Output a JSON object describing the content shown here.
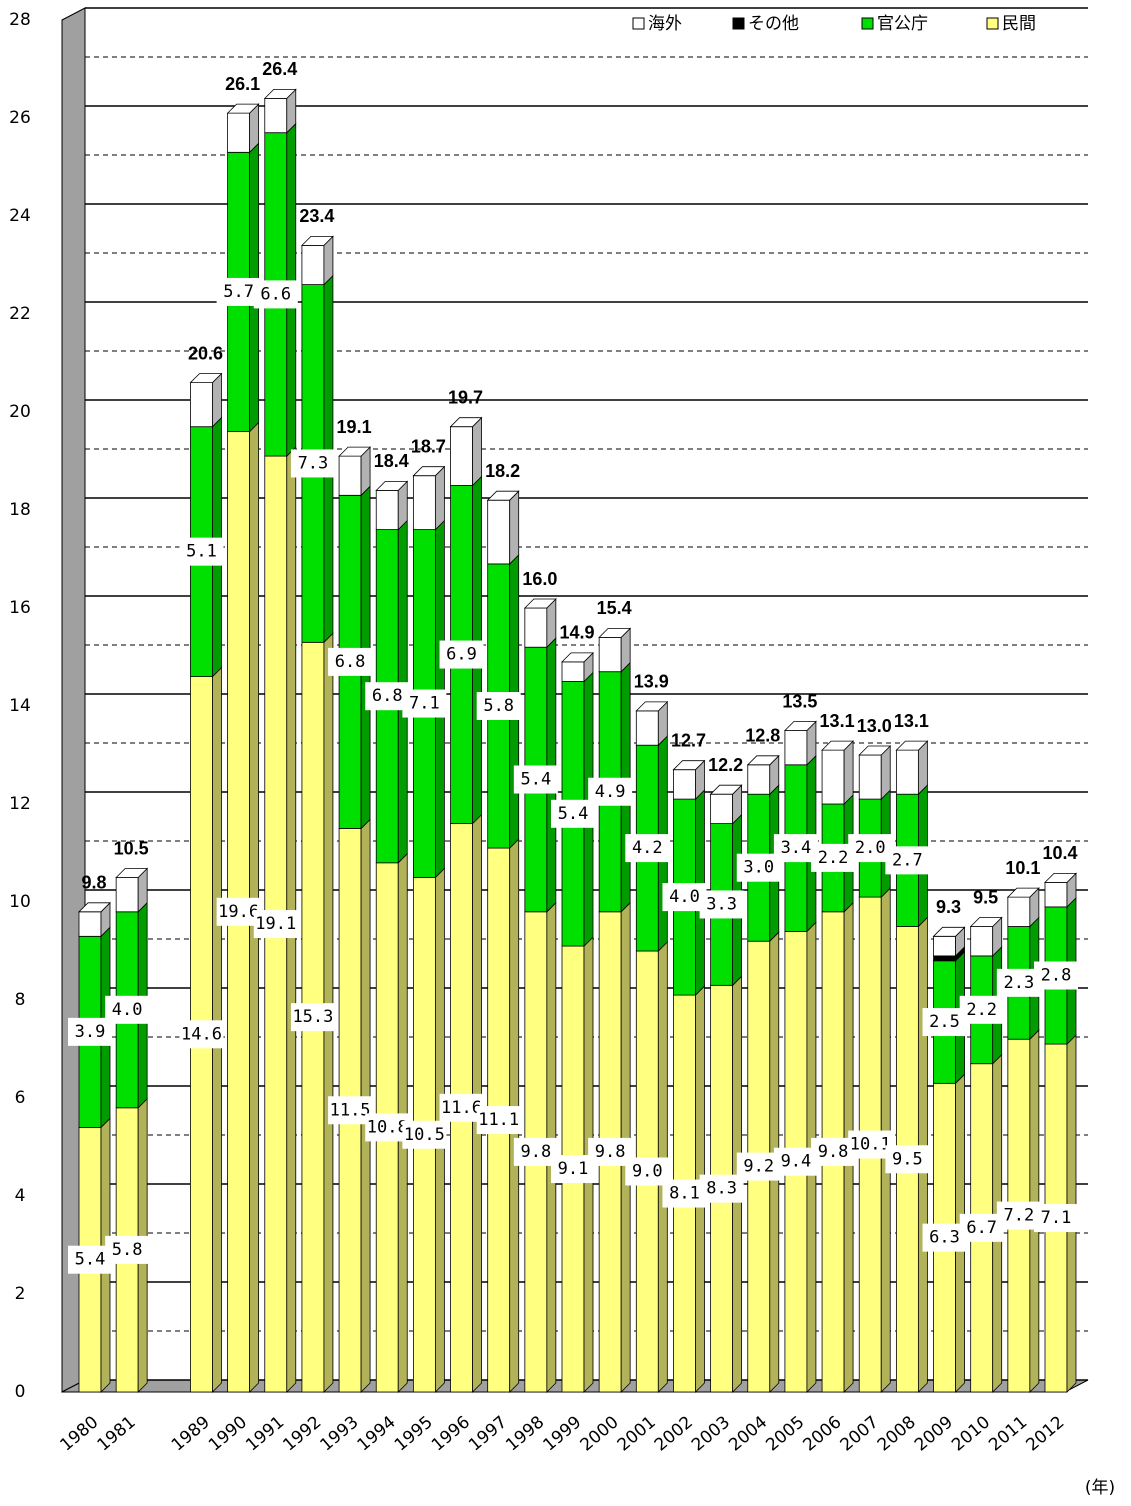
{
  "chart_data": {
    "type": "stacked_bar_3d",
    "x_label": "(年)",
    "categories": [
      "1980",
      "1981",
      null,
      "1989",
      "1990",
      "1991",
      "1992",
      "1993",
      "1994",
      "1995",
      "1996",
      "1997",
      "1998",
      "1999",
      "2000",
      "2001",
      "2002",
      "2003",
      "2004",
      "2005",
      "2006",
      "2007",
      "2008",
      "2009",
      "2010",
      "2011",
      "2012"
    ],
    "series": [
      {
        "name": "民間",
        "color": "#ffff80",
        "values": [
          5.4,
          5.8,
          null,
          14.6,
          19.6,
          19.1,
          15.3,
          11.5,
          10.8,
          10.5,
          11.6,
          11.1,
          9.8,
          9.1,
          9.8,
          9.0,
          8.1,
          8.3,
          9.2,
          9.4,
          9.8,
          10.1,
          9.5,
          6.3,
          6.7,
          7.2,
          7.1
        ],
        "value_labels": [
          "5.4",
          "5.8",
          null,
          "14.6",
          "19.6",
          "19.1",
          "15.3",
          "11.5",
          "10.8",
          "10.5",
          "11.6",
          "11.1",
          "9.8",
          "9.1",
          "9.8",
          "9.0",
          "8.1",
          "8.3",
          "9.2",
          "9.4",
          "9.8",
          "10.1",
          "9.5",
          "6.3",
          "6.7",
          "7.2",
          "7.1"
        ]
      },
      {
        "name": "官公庁",
        "color": "#00e000",
        "values": [
          3.9,
          4.0,
          null,
          5.1,
          5.7,
          6.6,
          7.3,
          6.8,
          6.8,
          7.1,
          6.9,
          5.8,
          5.4,
          5.4,
          4.9,
          4.2,
          4.0,
          3.3,
          3.0,
          3.4,
          2.2,
          2.0,
          2.7,
          2.5,
          2.2,
          2.3,
          2.8
        ],
        "value_labels": [
          "3.9",
          "4.0",
          null,
          "5.1",
          "5.7",
          "6.6",
          "7.3",
          "6.8",
          "6.8",
          "7.1",
          "6.9",
          "5.8",
          "5.4",
          "5.4",
          "4.9",
          "4.2",
          "4.0",
          "3.3",
          "3.0",
          "3.4",
          "2.2",
          "2.0",
          "2.7",
          "2.5",
          "2.2",
          "2.3",
          "2.8"
        ]
      },
      {
        "name": "その他",
        "color": "#000000",
        "values": [
          0,
          0,
          null,
          0,
          0,
          0,
          0,
          0,
          0,
          0,
          0,
          0,
          0,
          0,
          0,
          0,
          0,
          0,
          0,
          0,
          0,
          0,
          0,
          0.1,
          0,
          0,
          0
        ]
      },
      {
        "name": "海外",
        "color": "#ffffff",
        "values": [
          0.5,
          0.7,
          null,
          0.9,
          0.8,
          0.7,
          0.8,
          0.8,
          0.8,
          1.1,
          1.2,
          1.3,
          0.8,
          0.4,
          0.7,
          0.7,
          0.6,
          0.6,
          0.6,
          0.7,
          1.1,
          0.9,
          0.9,
          0.4,
          0.6,
          0.6,
          0.5
        ]
      }
    ],
    "totals": [
      9.8,
      10.5,
      null,
      20.6,
      26.1,
      26.4,
      23.4,
      19.1,
      18.4,
      18.7,
      19.7,
      18.2,
      16.0,
      14.9,
      15.4,
      13.9,
      12.7,
      12.2,
      12.8,
      13.5,
      13.1,
      13.0,
      13.1,
      9.3,
      9.5,
      10.1,
      10.4
    ],
    "total_labels": [
      "9.8",
      "10.5",
      null,
      "20.6",
      "26.1",
      "26.4",
      "23.4",
      "19.1",
      "18.4",
      "18.7",
      "19.7",
      "18.2",
      "16.0",
      "14.9",
      "15.4",
      "13.9",
      "12.7",
      "12.2",
      "12.8",
      "13.5",
      "13.1",
      "13.0",
      "13.1",
      "9.3",
      "9.5",
      "10.1",
      "10.4"
    ],
    "ylim": [
      0,
      28
    ],
    "yticks": [
      0,
      2,
      4,
      6,
      8,
      10,
      12,
      14,
      16,
      18,
      20,
      22,
      24,
      26,
      28
    ],
    "minor_yticks": [
      1,
      3,
      5,
      7,
      9,
      11,
      13,
      15,
      17,
      19,
      21,
      23,
      25,
      27
    ],
    "grid": true,
    "legend_position": "top-right"
  }
}
